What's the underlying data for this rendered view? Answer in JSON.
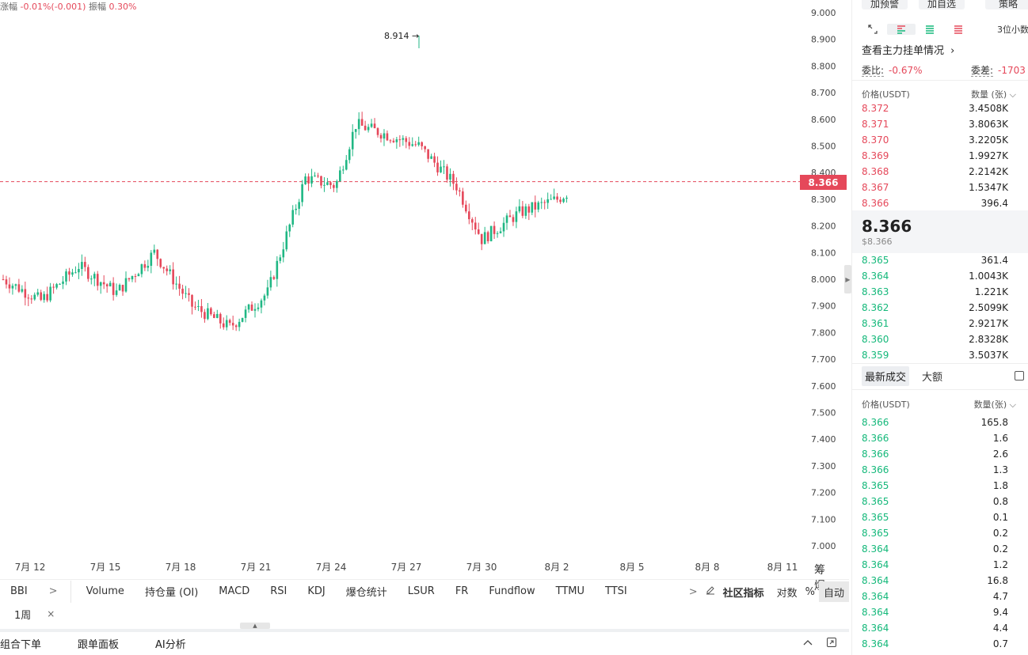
{
  "header": {
    "change_label": "涨幅",
    "change_value": "-0.01%(-0.001)",
    "amp_label": "振幅",
    "amp_value": "0.30%"
  },
  "chart": {
    "high_marker": "8.914",
    "last_price": "8.366",
    "y_ticks": [
      "9.000",
      "8.900",
      "8.800",
      "8.700",
      "8.600",
      "8.500",
      "8.400",
      "8.300",
      "8.200",
      "8.100",
      "8.000",
      "7.900",
      "7.800",
      "7.700",
      "7.600",
      "7.500",
      "7.400",
      "7.300",
      "7.200",
      "7.100",
      "7.000"
    ],
    "x_ticks": [
      "7月 12",
      "7月 15",
      "7月 18",
      "7月 21",
      "7月 24",
      "7月 27",
      "7月 30",
      "8月 2",
      "8月 5",
      "8月 8",
      "8月 11"
    ],
    "side_btn_1": "筹",
    "side_btn_2": "爆",
    "up_color": "#20b784",
    "down_color": "#e5485a"
  },
  "chart_data": {
    "type": "candlestick",
    "ylim": [
      7.0,
      9.0
    ],
    "x_ticks": [
      "7月 12",
      "7月 15",
      "7月 18",
      "7月 21",
      "7月 24",
      "7月 27",
      "7月 30",
      "8月 2",
      "8月 5",
      "8月 8",
      "8月 11"
    ],
    "marked_high": 8.914,
    "last_price": 8.366,
    "close_path": [
      [
        0,
        8.0
      ],
      [
        1.5,
        7.92
      ],
      [
        3,
        8.05
      ],
      [
        4.5,
        7.95
      ],
      [
        6,
        8.1
      ],
      [
        7.5,
        7.9
      ],
      [
        9,
        7.82
      ],
      [
        10.5,
        7.95
      ],
      [
        12,
        8.38
      ],
      [
        13.2,
        8.35
      ],
      [
        14,
        8.58
      ],
      [
        15,
        8.55
      ],
      [
        16.5,
        8.5
      ],
      [
        18,
        8.35
      ],
      [
        19,
        8.15
      ],
      [
        20.5,
        8.25
      ],
      [
        22,
        8.3
      ],
      [
        23,
        8.36
      ],
      [
        24.5,
        8.35
      ],
      [
        26,
        8.32
      ],
      [
        27,
        8.45
      ],
      [
        28.5,
        8.6
      ],
      [
        30,
        8.72
      ],
      [
        31,
        8.7
      ],
      [
        32.5,
        8.62
      ],
      [
        34,
        8.65
      ],
      [
        35.5,
        8.58
      ],
      [
        37,
        8.46
      ],
      [
        38.5,
        8.5
      ],
      [
        40,
        8.35
      ],
      [
        41.5,
        8.3
      ],
      [
        43,
        8.28
      ],
      [
        44.5,
        8.36
      ],
      [
        46,
        8.4
      ],
      [
        47.5,
        8.45
      ],
      [
        48.5,
        8.55
      ],
      [
        49.3,
        8.82
      ],
      [
        50,
        8.89
      ],
      [
        51,
        8.78
      ],
      [
        52,
        8.6
      ],
      [
        52.8,
        8.4
      ],
      [
        54,
        8.3
      ],
      [
        55.5,
        8.38
      ],
      [
        57,
        8.42
      ],
      [
        58.5,
        8.28
      ],
      [
        60,
        8.35
      ],
      [
        61,
        8.2
      ],
      [
        62,
        8.4
      ],
      [
        63,
        8.5
      ],
      [
        64,
        8.46
      ],
      [
        65,
        8.25
      ],
      [
        66,
        8.1
      ],
      [
        67,
        8.2
      ],
      [
        68,
        8.12
      ],
      [
        69,
        8.08
      ],
      [
        69.8,
        7.96
      ],
      [
        70.8,
        8.1
      ],
      [
        71.3,
        8.35
      ],
      [
        71.8,
        8.366
      ]
    ]
  },
  "indicators": {
    "items": [
      "BBI",
      "Volume",
      "持仓量 (OI)",
      "MACD",
      "RSI",
      "KDJ",
      "爆仓统计",
      "LSUR",
      "FR",
      "Fundflow",
      "TTMU",
      "TTSI"
    ],
    "more": ">",
    "community": "社区指标",
    "log": "对数",
    "pct": "%",
    "auto": "自动"
  },
  "period": {
    "label": "1周",
    "close": "×"
  },
  "bottom": {
    "tab1": "组合下单",
    "tab2": "跟单面板",
    "tab3": "AI分析"
  },
  "panel": {
    "btn1": "加预警",
    "btn2": "加自选",
    "btn3": "策略",
    "decimals": "3位小数",
    "depth_link": "查看主力挂单情况",
    "ratio_label": "委比:",
    "ratio_value": "-0.67%",
    "diff_label": "委差:",
    "diff_value": "-1703",
    "price_header": "价格(USDT)",
    "qty_header": "数量 (张)",
    "asks": [
      {
        "price": "8.372",
        "qty": "3.4508K"
      },
      {
        "price": "8.371",
        "qty": "3.8063K"
      },
      {
        "price": "8.370",
        "qty": "3.2205K"
      },
      {
        "price": "8.369",
        "qty": "1.9927K"
      },
      {
        "price": "8.368",
        "qty": "2.2142K"
      },
      {
        "price": "8.367",
        "qty": "1.5347K"
      },
      {
        "price": "8.366",
        "qty": "396.4"
      }
    ],
    "mid_price": "8.366",
    "mid_price_usd": "$8.366",
    "bids": [
      {
        "price": "8.365",
        "qty": "361.4"
      },
      {
        "price": "8.364",
        "qty": "1.0043K"
      },
      {
        "price": "8.363",
        "qty": "1.221K"
      },
      {
        "price": "8.362",
        "qty": "2.5099K"
      },
      {
        "price": "8.361",
        "qty": "2.9217K"
      },
      {
        "price": "8.360",
        "qty": "2.8328K"
      },
      {
        "price": "8.359",
        "qty": "3.5037K"
      }
    ],
    "trade_tab_active": "最新成交",
    "trade_tab_2": "大额",
    "trades_price_header": "价格(USDT)",
    "trades_qty_header": "数量(张)",
    "trades": [
      {
        "price": "8.366",
        "qty": "165.8"
      },
      {
        "price": "8.366",
        "qty": "1.6"
      },
      {
        "price": "8.366",
        "qty": "2.6"
      },
      {
        "price": "8.366",
        "qty": "1.3"
      },
      {
        "price": "8.365",
        "qty": "1.8"
      },
      {
        "price": "8.365",
        "qty": "0.8"
      },
      {
        "price": "8.365",
        "qty": "0.1"
      },
      {
        "price": "8.365",
        "qty": "0.2"
      },
      {
        "price": "8.364",
        "qty": "0.2"
      },
      {
        "price": "8.364",
        "qty": "1.2"
      },
      {
        "price": "8.364",
        "qty": "16.8"
      },
      {
        "price": "8.364",
        "qty": "4.7"
      },
      {
        "price": "8.364",
        "qty": "9.4"
      },
      {
        "price": "8.364",
        "qty": "4.4"
      },
      {
        "price": "8.364",
        "qty": "0.7"
      }
    ]
  }
}
